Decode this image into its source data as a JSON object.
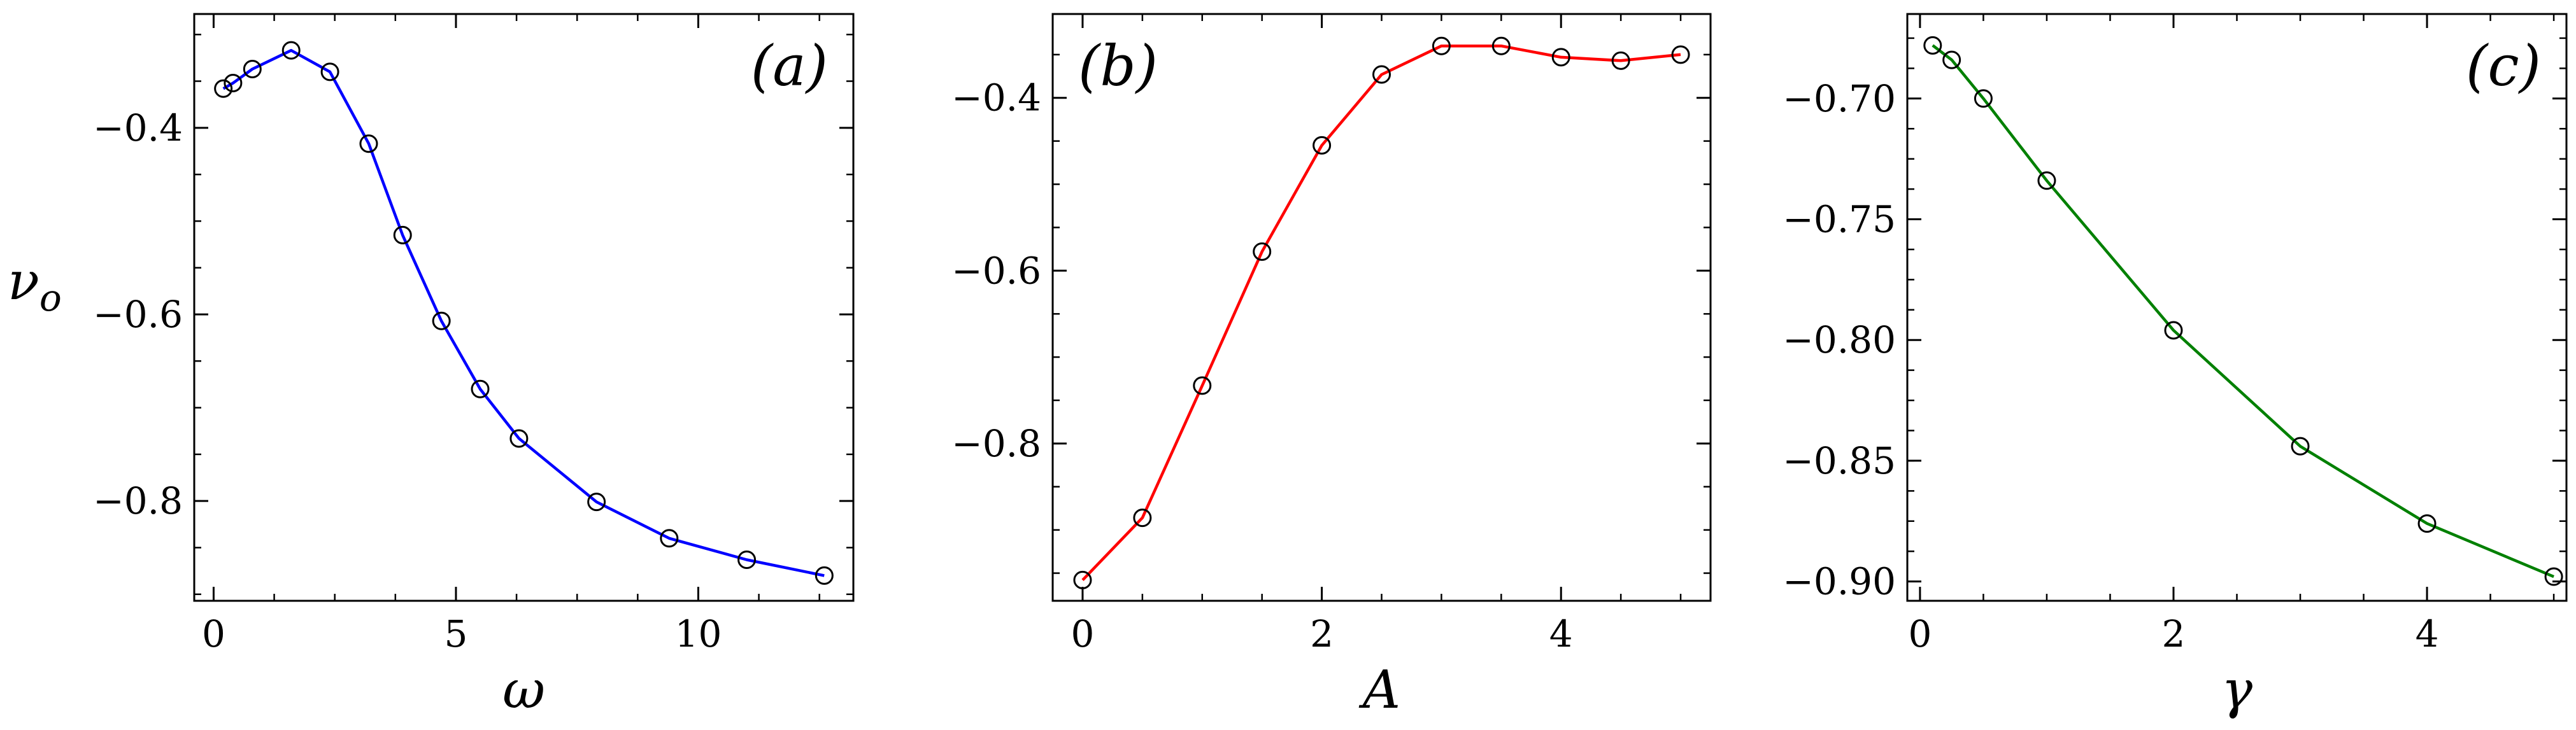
{
  "figure": {
    "ylabel": "ν",
    "ylabel_sub": "o"
  },
  "chart_data": [
    {
      "type": "line",
      "panel_label": "(a)",
      "xlabel": "ω",
      "ylabel": "νo",
      "xlim": [
        -0.4,
        13.2
      ],
      "ylim": [
        -0.907,
        -0.278
      ],
      "xticks": [
        0,
        5,
        10
      ],
      "xtick_labels": [
        "0",
        "5",
        "10"
      ],
      "yticks": [
        -0.4,
        -0.6,
        -0.8
      ],
      "ytick_labels": [
        "−0.4",
        "−0.6",
        "−0.8"
      ],
      "grid": false,
      "legend": "none",
      "marker": "open-circle",
      "series": [
        {
          "color": "#0000ff",
          "x": [
            0.2,
            0.4,
            0.8,
            1.6,
            2.4,
            3.2,
            3.9,
            4.7,
            5.5,
            6.3,
            7.9,
            9.4,
            11.0,
            12.6
          ],
          "y": [
            -0.358,
            -0.352,
            -0.337,
            -0.317,
            -0.34,
            -0.417,
            -0.515,
            -0.607,
            -0.68,
            -0.733,
            -0.801,
            -0.84,
            -0.863,
            -0.88
          ]
        }
      ]
    },
    {
      "type": "line",
      "panel_label": "(b)",
      "xlabel": "A",
      "ylabel": "",
      "xlim": [
        -0.25,
        5.25
      ],
      "ylim": [
        -0.982,
        -0.303
      ],
      "xticks": [
        0,
        2,
        4
      ],
      "xtick_labels": [
        "0",
        "2",
        "4"
      ],
      "yticks": [
        -0.4,
        -0.6,
        -0.8
      ],
      "ytick_labels": [
        "−0.4",
        "−0.6",
        "−0.8"
      ],
      "grid": false,
      "legend": "none",
      "marker": "open-circle",
      "series": [
        {
          "color": "#ff0000",
          "x": [
            0,
            0.5,
            1.0,
            1.5,
            2.0,
            2.5,
            3.0,
            3.5,
            4.0,
            4.5,
            5.0
          ],
          "y": [
            -0.958,
            -0.886,
            -0.733,
            -0.578,
            -0.455,
            -0.373,
            -0.34,
            -0.34,
            -0.353,
            -0.357,
            -0.35
          ]
        }
      ]
    },
    {
      "type": "line",
      "panel_label": "(c)",
      "xlabel": "γ",
      "ylabel": "",
      "xlim": [
        -0.1,
        5.1
      ],
      "ylim": [
        -0.908,
        -0.665
      ],
      "xticks": [
        0,
        2,
        4
      ],
      "xtick_labels": [
        "0",
        "2",
        "4"
      ],
      "yticks": [
        -0.7,
        -0.75,
        -0.8,
        -0.85,
        -0.9
      ],
      "ytick_labels": [
        "−0.70",
        "−0.75",
        "−0.80",
        "−0.85",
        "−0.90"
      ],
      "grid": false,
      "legend": "none",
      "marker": "open-circle",
      "series": [
        {
          "color": "#008000",
          "x": [
            0.1,
            0.25,
            0.5,
            1.0,
            2.0,
            3.0,
            4.0,
            5.0
          ],
          "y": [
            -0.678,
            -0.684,
            -0.7,
            -0.734,
            -0.796,
            -0.844,
            -0.876,
            -0.898
          ]
        }
      ]
    }
  ]
}
